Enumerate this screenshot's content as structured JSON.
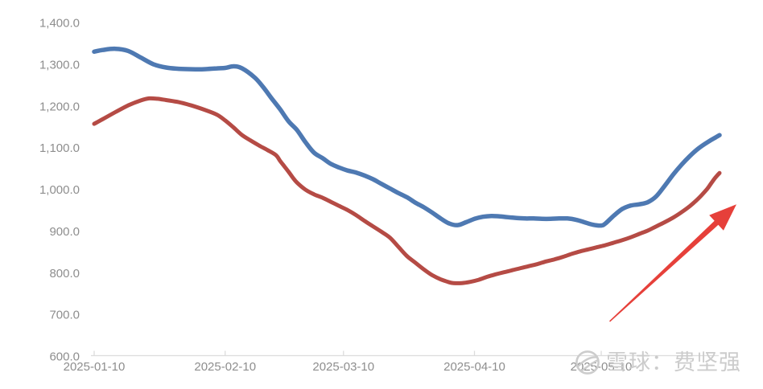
{
  "page": {
    "background": "#ffffff"
  },
  "colors": {
    "axis_label": "#8e8e8e",
    "axis_line": "#dcdcdc",
    "watermark": "#cccccc"
  },
  "watermark": {
    "icon": "xueqiu-snowball-icon",
    "text": "雪球：费坚强"
  },
  "chart_data": {
    "type": "line",
    "title": "",
    "grid": false,
    "legend": false,
    "x_axis": {
      "unit": "date",
      "ticks": [
        {
          "label": "2025-01-10",
          "day": 0
        },
        {
          "label": "2025-02-10",
          "day": 31
        },
        {
          "label": "2025-03-10",
          "day": 59
        },
        {
          "label": "2025-04-10",
          "day": 90
        },
        {
          "label": "2025-05-10",
          "day": 120
        }
      ],
      "data_end_day": 148
    },
    "y_axis": {
      "min": 600,
      "max": 1400,
      "step": 100,
      "ticks": [
        {
          "label": "1,400.0",
          "value": 1400
        },
        {
          "label": "1,300.0",
          "value": 1300
        },
        {
          "label": "1,200.0",
          "value": 1200
        },
        {
          "label": "1,100.0",
          "value": 1100
        },
        {
          "label": "1,000.0",
          "value": 1000
        },
        {
          "label": "900.0",
          "value": 900
        },
        {
          "label": "800.0",
          "value": 800
        },
        {
          "label": "700.0",
          "value": 700
        },
        {
          "label": "600.0",
          "value": 600
        }
      ]
    },
    "series": [
      {
        "name": "blue-line",
        "color": "#4e79b2",
        "stroke_width": 5.5,
        "points": [
          [
            0,
            1330
          ],
          [
            2,
            1334
          ],
          [
            5,
            1337
          ],
          [
            8,
            1332
          ],
          [
            11,
            1316
          ],
          [
            14,
            1300
          ],
          [
            17,
            1292
          ],
          [
            20,
            1289
          ],
          [
            23,
            1288
          ],
          [
            26,
            1288
          ],
          [
            29,
            1290
          ],
          [
            31,
            1291
          ],
          [
            33,
            1295
          ],
          [
            35,
            1290
          ],
          [
            38,
            1268
          ],
          [
            40,
            1245
          ],
          [
            42,
            1218
          ],
          [
            44,
            1192
          ],
          [
            46,
            1163
          ],
          [
            48,
            1142
          ],
          [
            50,
            1113
          ],
          [
            52,
            1088
          ],
          [
            54,
            1075
          ],
          [
            56,
            1061
          ],
          [
            58,
            1052
          ],
          [
            60,
            1045
          ],
          [
            62,
            1040
          ],
          [
            64,
            1033
          ],
          [
            66,
            1024
          ],
          [
            68,
            1013
          ],
          [
            70,
            1002
          ],
          [
            72,
            991
          ],
          [
            74,
            981
          ],
          [
            76,
            968
          ],
          [
            78,
            957
          ],
          [
            80,
            944
          ],
          [
            82,
            930
          ],
          [
            84,
            918
          ],
          [
            86,
            914
          ],
          [
            88,
            921
          ],
          [
            90,
            929
          ],
          [
            92,
            934
          ],
          [
            94,
            936
          ],
          [
            96,
            935
          ],
          [
            98,
            933
          ],
          [
            100,
            931
          ],
          [
            102,
            930
          ],
          [
            104,
            930
          ],
          [
            106,
            929
          ],
          [
            108,
            929
          ],
          [
            110,
            930
          ],
          [
            112,
            930
          ],
          [
            114,
            927
          ],
          [
            116,
            921
          ],
          [
            118,
            915
          ],
          [
            120,
            913
          ],
          [
            121,
            918
          ],
          [
            123,
            937
          ],
          [
            125,
            953
          ],
          [
            127,
            961
          ],
          [
            129,
            964
          ],
          [
            131,
            969
          ],
          [
            133,
            983
          ],
          [
            135,
            1008
          ],
          [
            137,
            1035
          ],
          [
            139,
            1059
          ],
          [
            141,
            1080
          ],
          [
            143,
            1098
          ],
          [
            145,
            1112
          ],
          [
            147,
            1124
          ],
          [
            148,
            1130
          ]
        ]
      },
      {
        "name": "red-line",
        "color": "#b54b45",
        "stroke_width": 5,
        "points": [
          [
            0,
            1157
          ],
          [
            2,
            1168
          ],
          [
            5,
            1185
          ],
          [
            8,
            1201
          ],
          [
            11,
            1213
          ],
          [
            13,
            1218
          ],
          [
            15,
            1217
          ],
          [
            17,
            1214
          ],
          [
            20,
            1209
          ],
          [
            23,
            1201
          ],
          [
            26,
            1191
          ],
          [
            29,
            1179
          ],
          [
            31,
            1165
          ],
          [
            33,
            1148
          ],
          [
            35,
            1130
          ],
          [
            37,
            1117
          ],
          [
            39,
            1105
          ],
          [
            41,
            1094
          ],
          [
            43,
            1082
          ],
          [
            44,
            1068
          ],
          [
            45,
            1055
          ],
          [
            46,
            1042
          ],
          [
            47,
            1028
          ],
          [
            48,
            1016
          ],
          [
            50,
            999
          ],
          [
            52,
            988
          ],
          [
            54,
            980
          ],
          [
            56,
            970
          ],
          [
            58,
            960
          ],
          [
            60,
            950
          ],
          [
            62,
            938
          ],
          [
            64,
            924
          ],
          [
            66,
            911
          ],
          [
            68,
            898
          ],
          [
            70,
            884
          ],
          [
            72,
            862
          ],
          [
            74,
            840
          ],
          [
            76,
            824
          ],
          [
            78,
            808
          ],
          [
            80,
            794
          ],
          [
            82,
            784
          ],
          [
            84,
            777
          ],
          [
            85,
            775
          ],
          [
            87,
            775
          ],
          [
            89,
            778
          ],
          [
            91,
            783
          ],
          [
            93,
            790
          ],
          [
            95,
            796
          ],
          [
            97,
            801
          ],
          [
            99,
            806
          ],
          [
            101,
            811
          ],
          [
            103,
            816
          ],
          [
            105,
            821
          ],
          [
            107,
            827
          ],
          [
            109,
            832
          ],
          [
            111,
            838
          ],
          [
            113,
            845
          ],
          [
            115,
            851
          ],
          [
            117,
            856
          ],
          [
            119,
            861
          ],
          [
            121,
            866
          ],
          [
            123,
            872
          ],
          [
            125,
            878
          ],
          [
            127,
            885
          ],
          [
            129,
            893
          ],
          [
            131,
            901
          ],
          [
            133,
            911
          ],
          [
            135,
            921
          ],
          [
            137,
            932
          ],
          [
            139,
            945
          ],
          [
            141,
            960
          ],
          [
            143,
            978
          ],
          [
            145,
            1000
          ],
          [
            146,
            1014
          ],
          [
            147,
            1028
          ],
          [
            148,
            1039
          ]
        ]
      }
    ],
    "annotation_arrow": {
      "color": "#e6403a",
      "from": {
        "day": 122,
        "value": 683
      },
      "to": {
        "day": 152,
        "value": 964
      }
    }
  }
}
